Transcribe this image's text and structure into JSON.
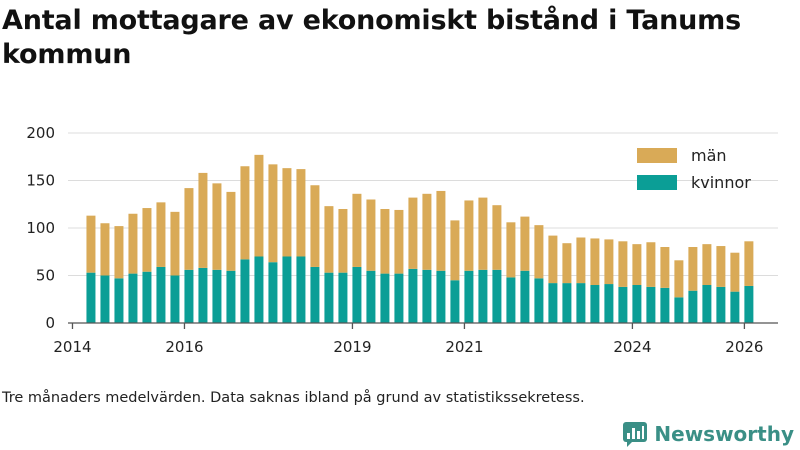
{
  "chart_data": {
    "type": "bar",
    "stacked": true,
    "title": "Antal mottagare av ekonomiskt bistånd i Tanums kommun",
    "ylim": [
      0,
      200
    ],
    "yticks": [
      0,
      50,
      100,
      150,
      200
    ],
    "xlim": [
      2013.92,
      2026.6
    ],
    "xticks": [
      {
        "label": "2014",
        "value": 2014.0
      },
      {
        "label": "2016",
        "value": 2016.0
      },
      {
        "label": "2019",
        "value": 2019.0
      },
      {
        "label": "2021",
        "value": 2021.0
      },
      {
        "label": "2024",
        "value": 2024.0
      },
      {
        "label": "2026",
        "value": 2026.0
      }
    ],
    "legend_position": "top-right",
    "x": [
      2014.33,
      2014.58,
      2014.83,
      2015.08,
      2015.33,
      2015.58,
      2015.83,
      2016.08,
      2016.33,
      2016.58,
      2016.83,
      2017.08,
      2017.33,
      2017.58,
      2017.83,
      2018.08,
      2018.33,
      2018.58,
      2018.83,
      2019.08,
      2019.33,
      2019.58,
      2019.83,
      2020.08,
      2020.33,
      2020.58,
      2020.83,
      2021.08,
      2021.33,
      2021.58,
      2021.83,
      2022.08,
      2022.33,
      2022.58,
      2022.83,
      2023.08,
      2023.33,
      2023.58,
      2023.83,
      2024.08,
      2024.33,
      2024.58,
      2024.83,
      2025.08,
      2025.33,
      2025.58,
      2025.83,
      2026.08
    ],
    "series": [
      {
        "name": "kvinnor",
        "color": "#0b9e96",
        "values": [
          53,
          50,
          47,
          52,
          54,
          59,
          50,
          56,
          58,
          56,
          55,
          67,
          70,
          64,
          70,
          70,
          59,
          53,
          53,
          59,
          55,
          52,
          52,
          57,
          56,
          55,
          45,
          55,
          56,
          56,
          48,
          55,
          47,
          42,
          42,
          42,
          40,
          41,
          38,
          40,
          38,
          37,
          27,
          34,
          40,
          38,
          33,
          39
        ]
      },
      {
        "name": "män",
        "color": "#d9aa57",
        "values": [
          60,
          55,
          55,
          63,
          67,
          68,
          67,
          86,
          100,
          91,
          83,
          98,
          107,
          103,
          93,
          92,
          86,
          70,
          67,
          77,
          75,
          68,
          67,
          75,
          80,
          84,
          63,
          74,
          76,
          68,
          58,
          57,
          56,
          50,
          42,
          48,
          49,
          47,
          48,
          43,
          47,
          43,
          39,
          46,
          43,
          43,
          41,
          47
        ]
      }
    ]
  },
  "footnote": "Tre månaders medelvärden. Data saknas ibland på grund av statistikssekretess.",
  "brand": {
    "name": "Newsworthy",
    "color": "#3a8f86"
  }
}
